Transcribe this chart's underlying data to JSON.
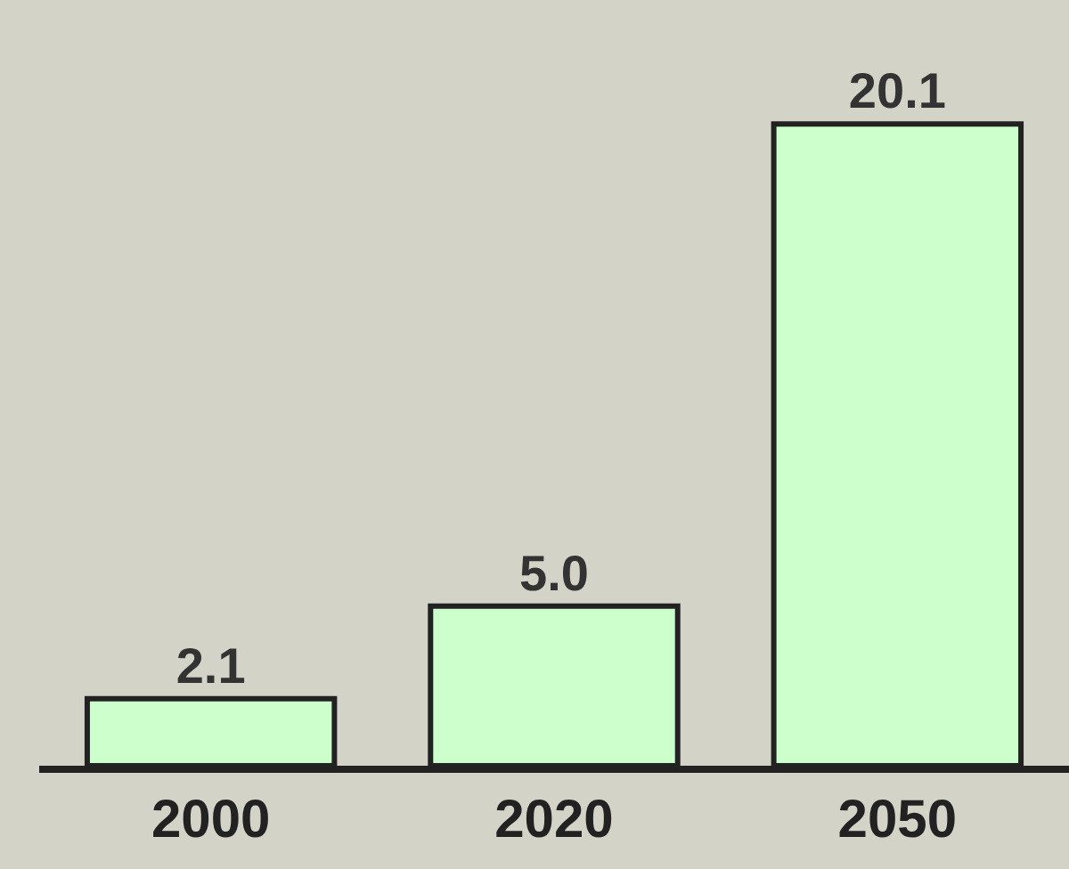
{
  "chart_data": {
    "type": "bar",
    "categories": [
      "2000",
      "2020",
      "2050"
    ],
    "values": [
      2.1,
      5.0,
      20.1
    ],
    "value_labels": [
      "2.1",
      "5.0",
      "20.1"
    ],
    "color": "#ccffcc",
    "grid": false,
    "legend": false
  }
}
